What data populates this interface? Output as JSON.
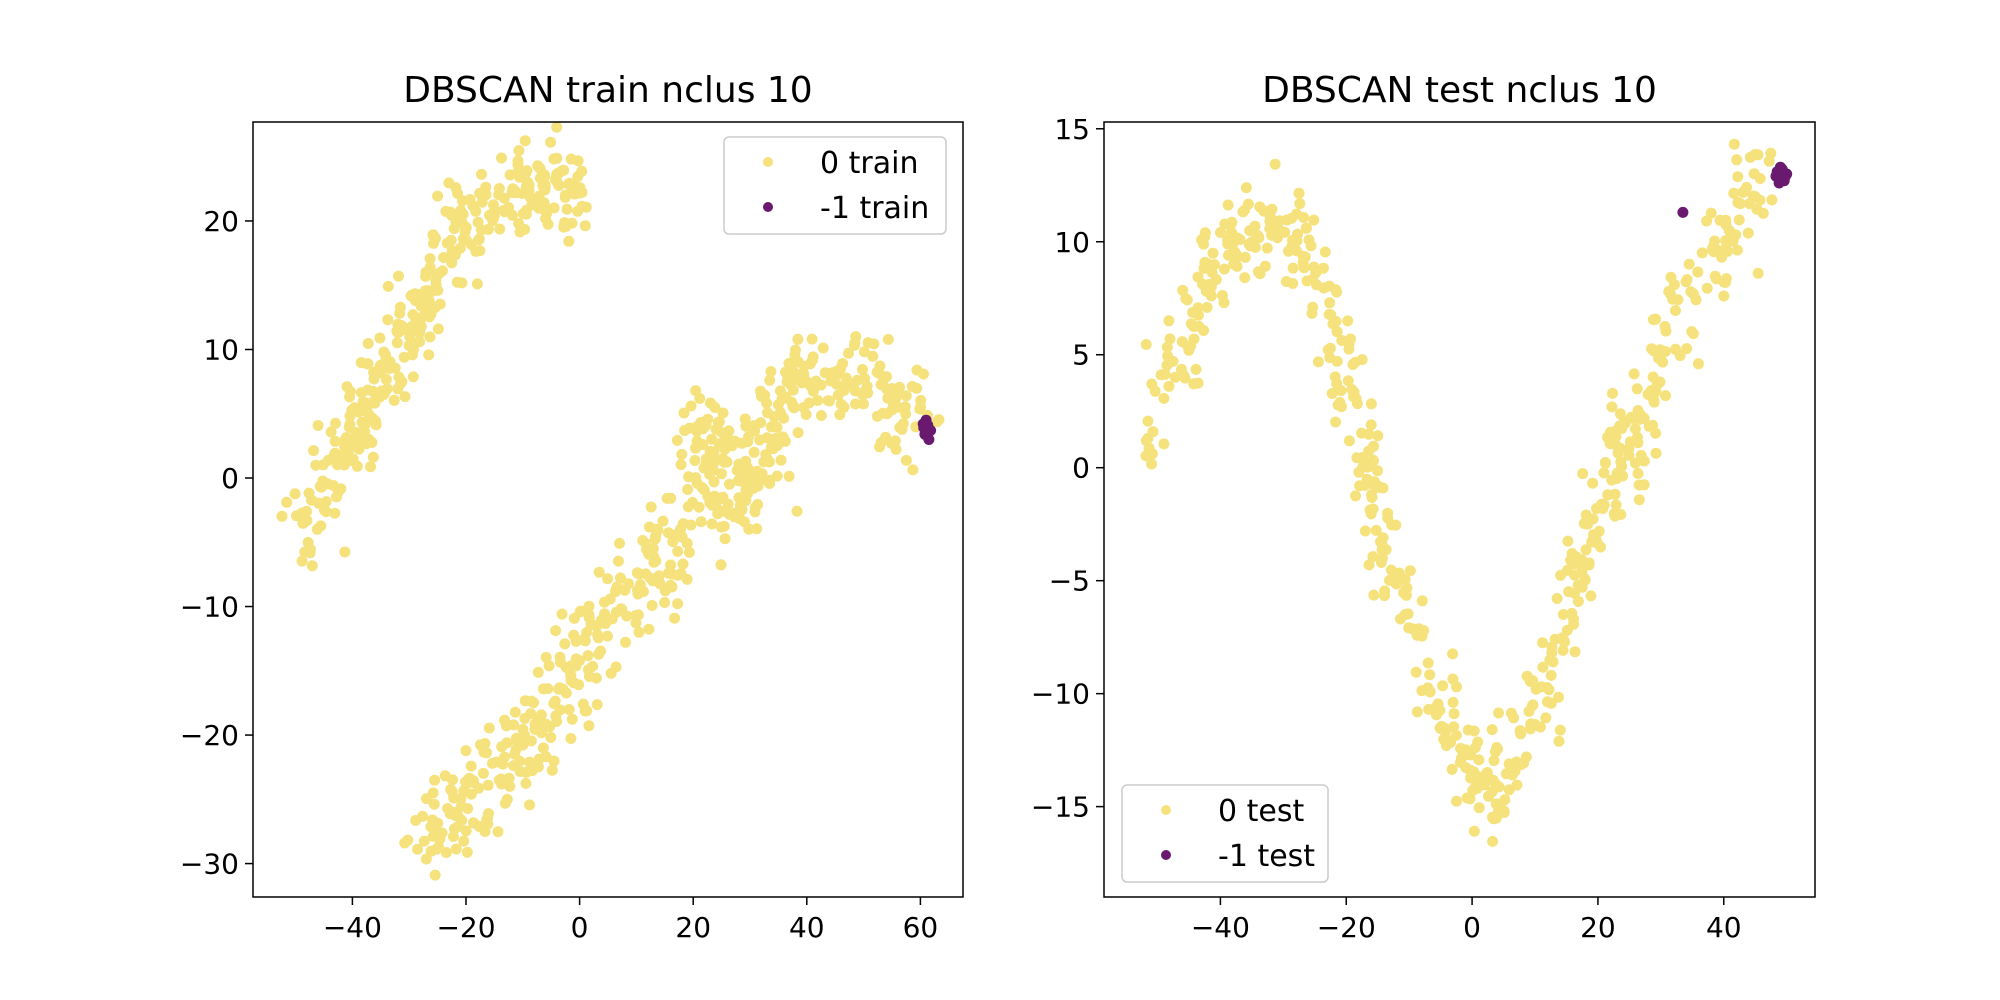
{
  "colors": {
    "cluster_0": "#f5e27d",
    "noise": "#6a1a6e",
    "axes": "#000000",
    "legend_border": "#cccccc"
  },
  "chart_data": [
    {
      "type": "scatter",
      "title": "DBSCAN train nclus 10",
      "xlabel": "",
      "ylabel": "",
      "xlim": [
        -57.5,
        67.5
      ],
      "ylim": [
        -32.6,
        27.7
      ],
      "xticks": [
        -40,
        -20,
        0,
        20,
        40,
        60
      ],
      "yticks": [
        -30,
        -20,
        -10,
        0,
        10,
        20
      ],
      "xtick_labels": [
        "−40",
        "−20",
        "0",
        "20",
        "40",
        "60"
      ],
      "ytick_labels": [
        "−30",
        "−20",
        "−10",
        "0",
        "10",
        "20"
      ],
      "legend_position": "top-right",
      "grid": false,
      "series": [
        {
          "name": "0 train",
          "color": "#f5e27d",
          "path": [
            [
              -51,
              -5
            ],
            [
              -48,
              -2.5
            ],
            [
              -45,
              -0.5
            ],
            [
              -43,
              1.5
            ],
            [
              -40,
              3.5
            ],
            [
              -37,
              6
            ],
            [
              -34,
              8
            ],
            [
              -31,
              10.5
            ],
            [
              -29,
              12
            ],
            [
              -27,
              15
            ],
            [
              -26,
              17
            ],
            [
              -23,
              18.5
            ],
            [
              -20,
              20
            ],
            [
              -16,
              21
            ],
            [
              -12,
              22
            ],
            [
              -8,
              23
            ],
            [
              -5,
              23.5
            ],
            [
              -2,
              22.5
            ],
            [
              0,
              21
            ]
          ],
          "spread": 1.8,
          "count": 340,
          "path2": [
            [
              -27,
              -28
            ],
            [
              -24,
              -27
            ],
            [
              -20,
              -25
            ],
            [
              -16,
              -24
            ],
            [
              -12,
              -22
            ],
            [
              -9,
              -21
            ],
            [
              -7,
              -19
            ],
            [
              -4,
              -17
            ],
            [
              -2,
              -15
            ],
            [
              0,
              -13
            ],
            [
              3,
              -12
            ],
            [
              6,
              -10
            ],
            [
              9,
              -9
            ],
            [
              12,
              -8
            ],
            [
              15,
              -7
            ],
            [
              17,
              -5
            ],
            [
              19,
              -2
            ],
            [
              21,
              1
            ],
            [
              23,
              3
            ],
            [
              25,
              -1
            ],
            [
              27,
              -3
            ],
            [
              29,
              1
            ],
            [
              31,
              -1
            ],
            [
              33,
              2
            ],
            [
              35,
              5
            ],
            [
              37,
              7
            ],
            [
              40,
              8
            ],
            [
              44,
              8
            ],
            [
              48,
              7.5
            ],
            [
              52,
              7
            ],
            [
              55,
              6
            ],
            [
              58,
              5
            ],
            [
              60,
              4
            ]
          ],
          "spread2": 2.1,
          "count2": 560
        },
        {
          "name": "-1 train",
          "color": "#6a1a6e",
          "points": [
            [
              60.5,
              4.2
            ],
            [
              61.2,
              3.8
            ],
            [
              61.5,
              3.0
            ],
            [
              60.8,
              3.4
            ],
            [
              61.0,
              4.5
            ],
            [
              61.8,
              3.7
            ],
            [
              60.6,
              3.9
            ],
            [
              61.3,
              4.1
            ]
          ]
        }
      ]
    },
    {
      "type": "scatter",
      "title": "DBSCAN test nclus 10",
      "xlabel": "",
      "ylabel": "",
      "xlim": [
        -58.5,
        54.5
      ],
      "ylim": [
        -19.0,
        15.3
      ],
      "xticks": [
        -40,
        -20,
        0,
        20,
        40
      ],
      "yticks": [
        -15,
        -10,
        -5,
        0,
        5,
        10,
        15
      ],
      "xtick_labels": [
        "−40",
        "−20",
        "0",
        "20",
        "40"
      ],
      "ytick_labels": [
        "−15",
        "−10",
        "−5",
        "0",
        "5",
        "10",
        "15"
      ],
      "legend_position": "bottom-left",
      "grid": false,
      "series": [
        {
          "name": "0 test",
          "color": "#f5e27d",
          "path": [
            [
              -52,
              0.5
            ],
            [
              -49,
              3
            ],
            [
              -46,
              5.5
            ],
            [
              -43,
              8
            ],
            [
              -40,
              9.5
            ],
            [
              -36,
              10.5
            ],
            [
              -33,
              11
            ],
            [
              -30,
              10.5
            ],
            [
              -27,
              9.5
            ],
            [
              -24,
              8
            ],
            [
              -22,
              6.5
            ],
            [
              -20,
              4
            ],
            [
              -18,
              1.5
            ],
            [
              -16,
              -1
            ],
            [
              -14,
              -3.5
            ],
            [
              -12,
              -5
            ],
            [
              -10,
              -6.5
            ],
            [
              -8,
              -8.5
            ],
            [
              -6,
              -10
            ],
            [
              -4,
              -11
            ],
            [
              -2,
              -12
            ],
            [
              0,
              -13.5
            ],
            [
              2,
              -15
            ],
            [
              4,
              -14
            ],
            [
              6,
              -13
            ],
            [
              8,
              -12
            ],
            [
              10,
              -11
            ],
            [
              12,
              -10
            ],
            [
              14,
              -8
            ],
            [
              16,
              -6
            ],
            [
              18,
              -4
            ],
            [
              20,
              -2
            ],
            [
              22,
              0
            ],
            [
              24,
              1.5
            ],
            [
              26,
              0
            ],
            [
              28,
              2.5
            ],
            [
              30,
              4.5
            ],
            [
              32,
              6.5
            ],
            [
              34,
              7.5
            ],
            [
              36,
              8
            ],
            [
              38,
              9
            ],
            [
              40,
              10
            ],
            [
              42,
              11
            ],
            [
              44,
              12
            ],
            [
              46,
              12.8
            ],
            [
              48,
              13.2
            ]
          ],
          "spread": 1.2,
          "count": 600
        },
        {
          "name": "-1 test",
          "color": "#6a1a6e",
          "points": [
            [
              33.5,
              11.3
            ],
            [
              48.3,
              12.9
            ],
            [
              49.0,
              13.3
            ],
            [
              49.6,
              12.7
            ],
            [
              48.8,
              12.6
            ],
            [
              50.0,
              13.0
            ],
            [
              49.3,
              13.2
            ],
            [
              48.5,
              13.1
            ],
            [
              49.8,
              12.9
            ]
          ]
        }
      ]
    }
  ]
}
